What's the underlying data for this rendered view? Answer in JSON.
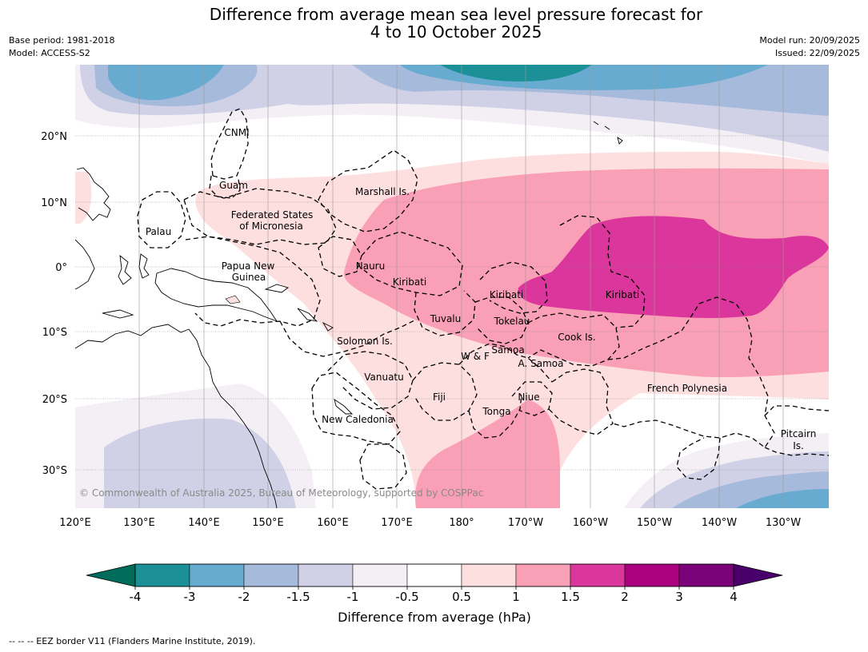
{
  "header": {
    "title_line1": "Difference from average mean sea level pressure forecast for",
    "title_line2": "4 to 10 October 2025",
    "base_period": "Base period: 1981-2018",
    "model": "Model: ACCESS-S2",
    "model_run": "Model run: 20/09/2025",
    "issued": "Issued: 22/09/2025"
  },
  "map": {
    "lon_labels": [
      "120°E",
      "130°E",
      "140°E",
      "150°E",
      "160°E",
      "170°E",
      "180°",
      "170°W",
      "160°W",
      "150°W",
      "140°W",
      "130°W"
    ],
    "lat_labels": [
      "20°N",
      "10°N",
      "0°",
      "10°S",
      "20°S",
      "30°S"
    ],
    "places": {
      "cnmi": "CNMI",
      "guam": "Guam",
      "marshall": "Marshall Is.",
      "fsm_1": "Federated States",
      "fsm_2": "of Micronesia",
      "palau": "Palau",
      "png_1": "Papua New",
      "png_2": "Guinea",
      "nauru": "Nauru",
      "kiribati_w": "Kiribati",
      "kiribati_c": "Kiribati",
      "kiribati_e": "Kiribati",
      "tuvalu": "Tuvalu",
      "tokelau": "Tokelau",
      "cook": "Cook Is.",
      "solomon": "Solomon Is.",
      "samoa": "Samoa",
      "wf": "W & F",
      "asamoa": "A. Samoa",
      "vanuatu": "Vanuatu",
      "fiji": "Fiji",
      "niue": "Niue",
      "tonga": "Tonga",
      "newcal": "New Caledonia",
      "fp": "French Polynesia",
      "pitcairn_1": "Pitcairn",
      "pitcairn_2": "Is."
    },
    "copyright": "© Commonwealth of Australia 2025, Bureau of Meteorology, supported by COSPPac"
  },
  "colorbar": {
    "ticks": [
      "-4",
      "-3",
      "-2",
      "-1.5",
      "-1",
      "-0.5",
      "0.5",
      "1",
      "1.5",
      "2",
      "3",
      "4"
    ],
    "colors": [
      "#1b9197",
      "#67abd1",
      "#a6badb",
      "#d0d1e6",
      "#f3eff5",
      "#ffffff",
      "#fedfe0",
      "#f99fb6",
      "#db369b",
      "#ac017e",
      "#7a0177"
    ],
    "under_color": "#016c5a",
    "over_color": "#49006a",
    "label": "Difference from average (hPa)"
  },
  "footnote": "--  --  -- EEZ border V11 (Flanders Marine Institute, 2019)."
}
